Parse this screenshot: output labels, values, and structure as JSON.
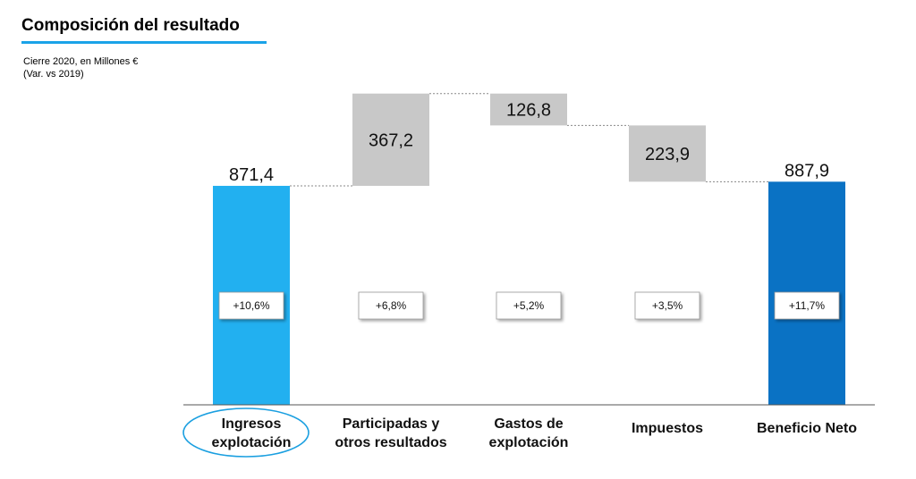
{
  "header": {
    "title": "Composición del resultado",
    "subtitle_line1": "Cierre 2020, en Millones €",
    "subtitle_line2": "(Var. vs 2019)"
  },
  "colors": {
    "start_bar": "#22b0f0",
    "end_bar": "#0a72c4",
    "step_bar": "#c8c8c8",
    "title_rule": "#1aa3e8",
    "highlight_ellipse": "#1a9fe0"
  },
  "chart_data": {
    "type": "bar",
    "subtype": "waterfall",
    "title": "Composición del resultado",
    "subtitle": "Cierre 2020, en Millones € (Var. vs 2019)",
    "categories": [
      [
        "Ingresos",
        "explotación"
      ],
      [
        "Participadas y",
        "otros resultados"
      ],
      [
        "Gastos de",
        "explotación"
      ],
      [
        "Impuestos"
      ],
      [
        "Beneficio Neto"
      ]
    ],
    "values": [
      871.4,
      367.2,
      -126.8,
      -223.9,
      887.9
    ],
    "value_labels": [
      "871,4",
      "367,2",
      "126,8",
      "223,9",
      "887,9"
    ],
    "kinds": [
      "total",
      "increase",
      "decrease",
      "decrease",
      "total"
    ],
    "variation_labels": [
      "+10,6%",
      "+6,8%",
      "+5,2%",
      "+3,5%",
      "+11,7%"
    ],
    "highlighted_category": 0,
    "ylim": [
      0,
      1250
    ],
    "grid": false,
    "legend": "none"
  }
}
